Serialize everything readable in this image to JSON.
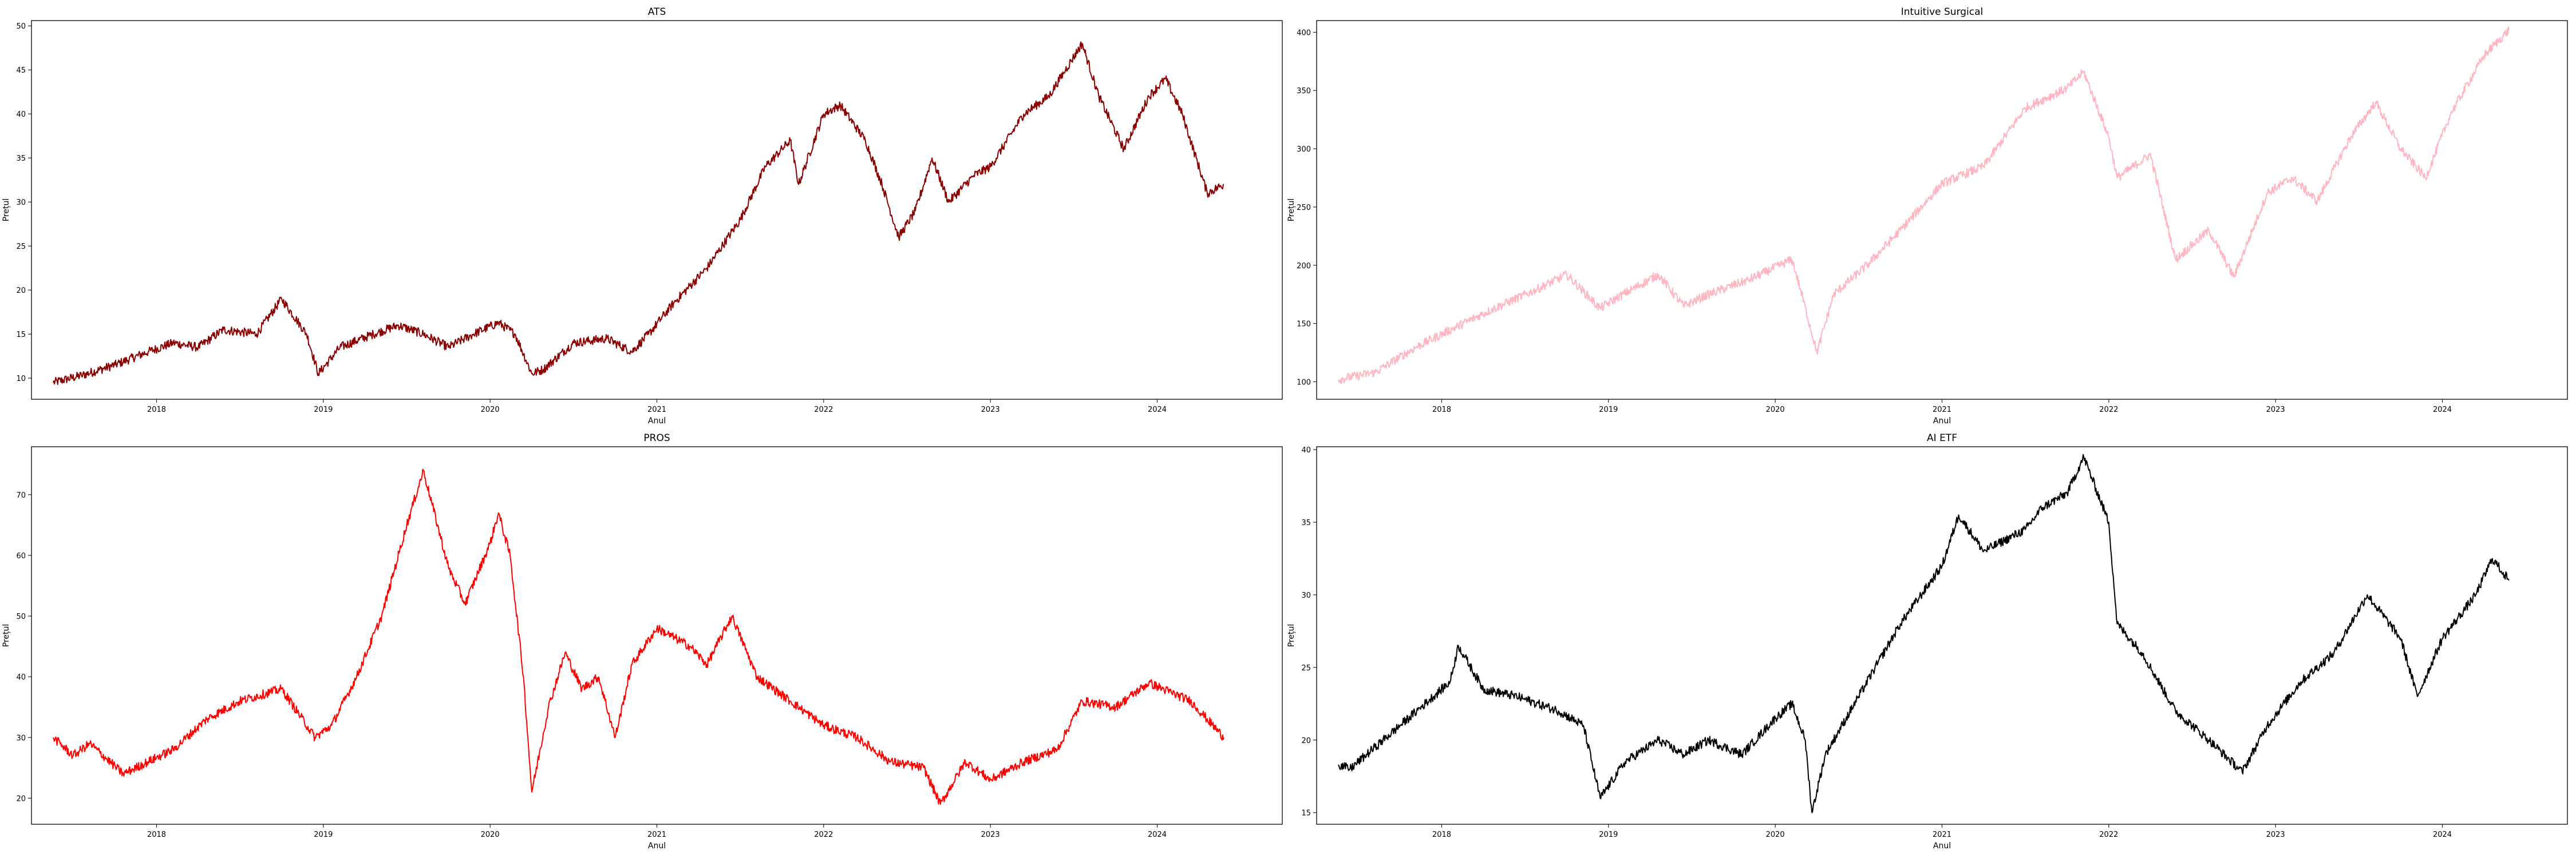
{
  "chart_data": [
    {
      "type": "line",
      "title": "ATS",
      "xlabel": "Anul",
      "ylabel": "Prețul",
      "color": "#8b0000",
      "xlim": [
        2017.25,
        2024.75
      ],
      "ylim": [
        7.6,
        50.6
      ],
      "xticks": [
        2018,
        2019,
        2020,
        2021,
        2022,
        2023,
        2024
      ],
      "yticks": [
        10,
        15,
        20,
        25,
        30,
        35,
        40,
        45,
        50
      ],
      "grid": false,
      "x": [
        2017.38,
        2017.55,
        2017.75,
        2017.95,
        2018.1,
        2018.25,
        2018.4,
        2018.6,
        2018.75,
        2018.9,
        2018.97,
        2019.1,
        2019.3,
        2019.45,
        2019.6,
        2019.75,
        2019.9,
        2020.05,
        2020.15,
        2020.25,
        2020.32,
        2020.5,
        2020.7,
        2020.85,
        2020.95,
        2021.1,
        2021.3,
        2021.5,
        2021.65,
        2021.8,
        2021.85,
        2022.0,
        2022.1,
        2022.25,
        2022.35,
        2022.45,
        2022.55,
        2022.65,
        2022.75,
        2022.9,
        2023.0,
        2023.2,
        2023.35,
        2023.45,
        2023.55,
        2023.65,
        2023.8,
        2023.95,
        2024.05,
        2024.15,
        2024.3,
        2024.4
      ],
      "y": [
        9.5,
        10.3,
        11.5,
        13.0,
        14.0,
        13.5,
        15.5,
        15.0,
        19.0,
        15.0,
        10.5,
        13.5,
        15.0,
        16.0,
        15.0,
        13.5,
        15.0,
        16.3,
        15.0,
        10.5,
        11.0,
        14.0,
        14.5,
        13.0,
        15.0,
        18.5,
        22.5,
        28.0,
        34.0,
        37.0,
        32.0,
        40.0,
        41.0,
        37.0,
        32.0,
        26.0,
        29.0,
        35.0,
        30.0,
        33.0,
        34.0,
        40.0,
        42.0,
        45.0,
        48.0,
        42.0,
        36.0,
        42.0,
        44.0,
        40.0,
        31.0,
        32.0
      ]
    },
    {
      "type": "line",
      "title": "Intuitive Surgical",
      "xlabel": "Anul",
      "ylabel": "Prețul",
      "color": "#ffb6c1",
      "xlim": [
        2017.25,
        2024.75
      ],
      "ylim": [
        85,
        410
      ],
      "xticks": [
        2018,
        2019,
        2020,
        2021,
        2022,
        2023,
        2024
      ],
      "yticks": [
        100,
        150,
        200,
        250,
        300,
        350,
        400
      ],
      "grid": false,
      "x": [
        2017.38,
        2017.6,
        2017.85,
        2018.1,
        2018.3,
        2018.55,
        2018.75,
        2018.95,
        2019.05,
        2019.3,
        2019.45,
        2019.6,
        2019.85,
        2020.1,
        2020.15,
        2020.25,
        2020.35,
        2020.55,
        2020.75,
        2021.0,
        2021.25,
        2021.5,
        2021.75,
        2021.85,
        2022.0,
        2022.05,
        2022.25,
        2022.4,
        2022.6,
        2022.75,
        2022.95,
        2023.1,
        2023.25,
        2023.45,
        2023.6,
        2023.75,
        2023.9,
        2024.05,
        2024.25,
        2024.4
      ],
      "y": [
        102,
        108,
        130,
        148,
        162,
        178,
        192,
        163,
        172,
        192,
        165,
        175,
        188,
        205,
        180,
        125,
        175,
        200,
        230,
        270,
        285,
        335,
        352,
        366,
        310,
        275,
        295,
        205,
        230,
        190,
        262,
        275,
        255,
        310,
        340,
        300,
        275,
        330,
        380,
        402
      ]
    },
    {
      "type": "line",
      "title": "PROS",
      "xlabel": "Anul",
      "ylabel": "Prețul",
      "color": "#ff0000",
      "xlim": [
        2017.25,
        2024.75
      ],
      "ylim": [
        15.7,
        77.9
      ],
      "xticks": [
        2018,
        2019,
        2020,
        2021,
        2022,
        2023,
        2024
      ],
      "yticks": [
        20,
        30,
        40,
        50,
        60,
        70
      ],
      "grid": false,
      "x": [
        2017.38,
        2017.5,
        2017.6,
        2017.8,
        2017.95,
        2018.1,
        2018.3,
        2018.5,
        2018.75,
        2018.95,
        2019.05,
        2019.2,
        2019.35,
        2019.5,
        2019.6,
        2019.75,
        2019.85,
        2020.0,
        2020.05,
        2020.12,
        2020.2,
        2020.25,
        2020.35,
        2020.45,
        2020.55,
        2020.65,
        2020.75,
        2020.85,
        2021.0,
        2021.2,
        2021.3,
        2021.45,
        2021.6,
        2021.8,
        2022.0,
        2022.2,
        2022.4,
        2022.6,
        2022.7,
        2022.85,
        2023.0,
        2023.2,
        2023.4,
        2023.55,
        2023.75,
        2023.95,
        2024.2,
        2024.4
      ],
      "y": [
        30.0,
        27.0,
        29.0,
        24.0,
        26.0,
        28.0,
        33.0,
        36.0,
        38.0,
        30.0,
        32.0,
        40.0,
        50.0,
        65.0,
        74.0,
        58.0,
        52.0,
        62.0,
        67.0,
        60.0,
        40.0,
        21.0,
        35.0,
        44.0,
        38.0,
        40.0,
        30.0,
        42.0,
        48.0,
        45.0,
        42.0,
        50.0,
        40.0,
        36.0,
        32.0,
        30.0,
        26.0,
        25.0,
        19.0,
        26.0,
        23.0,
        26.0,
        28.0,
        36.0,
        35.0,
        39.0,
        36.0,
        30.0
      ]
    },
    {
      "type": "line",
      "title": "AI ETF",
      "xlabel": "Anul",
      "ylabel": "Prețul",
      "color": "#000000",
      "xlim": [
        2017.25,
        2024.75
      ],
      "ylim": [
        14.2,
        40.2
      ],
      "xticks": [
        2018,
        2019,
        2020,
        2021,
        2022,
        2023,
        2024
      ],
      "yticks": [
        15,
        20,
        25,
        30,
        35,
        40
      ],
      "grid": false,
      "x": [
        2017.38,
        2017.45,
        2017.6,
        2017.85,
        2018.05,
        2018.1,
        2018.25,
        2018.45,
        2018.7,
        2018.85,
        2018.95,
        2019.1,
        2019.3,
        2019.45,
        2019.6,
        2019.8,
        2020.0,
        2020.1,
        2020.18,
        2020.22,
        2020.3,
        2020.5,
        2020.75,
        2021.0,
        2021.1,
        2021.25,
        2021.5,
        2021.6,
        2021.75,
        2021.85,
        2022.0,
        2022.05,
        2022.2,
        2022.4,
        2022.6,
        2022.8,
        2022.95,
        2023.15,
        2023.35,
        2023.55,
        2023.75,
        2023.85,
        2024.0,
        2024.2,
        2024.3,
        2024.4
      ],
      "y": [
        18.3,
        18.0,
        19.5,
        22.0,
        24.0,
        26.5,
        23.5,
        23.0,
        22.0,
        21.0,
        16.0,
        18.5,
        20.0,
        19.0,
        20.0,
        19.0,
        21.5,
        22.5,
        20.0,
        15.0,
        19.0,
        23.0,
        28.0,
        32.0,
        35.5,
        33.0,
        34.5,
        36.0,
        37.0,
        39.5,
        35.0,
        28.0,
        26.0,
        22.0,
        20.0,
        17.8,
        21.0,
        24.0,
        26.0,
        30.0,
        27.0,
        23.0,
        27.0,
        30.0,
        32.5,
        31.0
      ]
    }
  ]
}
